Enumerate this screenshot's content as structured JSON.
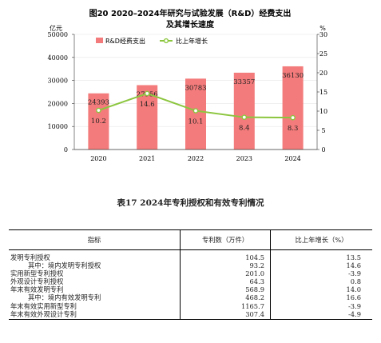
{
  "chart_data": {
    "type": "bar",
    "title_line1": "图20   2020–2024年研究与试验发展（R&D）经费支出",
    "title_line2": "及其增长速度",
    "left_unit": "亿元",
    "right_unit": "%",
    "categories": [
      "2020",
      "2021",
      "2022",
      "2023",
      "2024"
    ],
    "y_ticks": [
      "0",
      "10000",
      "20000",
      "30000",
      "40000",
      "50000"
    ],
    "y2_ticks": [
      "0",
      "5",
      "10",
      "15",
      "20",
      "25",
      "30"
    ],
    "ylim": [
      0,
      50000
    ],
    "y2lim": [
      0,
      30
    ],
    "series": [
      {
        "name": "R&D经费支出",
        "values": [
          24393,
          27956,
          30783,
          33357,
          36130
        ],
        "labels": [
          "24393",
          "27956",
          "30783",
          "33357",
          "36130"
        ],
        "color": "#f47b7b"
      },
      {
        "name": "比上年增长",
        "values": [
          10.2,
          14.6,
          10.1,
          8.4,
          8.3
        ],
        "labels": [
          "10.2",
          "14.6",
          "10.1",
          "8.4",
          "8.3"
        ],
        "color": "#8cc63f"
      }
    ],
    "legend_position": "top-left"
  },
  "table": {
    "title": "表17    2024年专利授权和有效专利情况",
    "headers": [
      "指标",
      "专利数（万件）",
      "比上年增长（%）"
    ],
    "rows": [
      {
        "label": "发明专利授权",
        "value": "104.5",
        "growth": "13.5",
        "indent": false
      },
      {
        "label": "其中：境内发明专利授权",
        "value": "93.2",
        "growth": "14.6",
        "indent": true
      },
      {
        "label": "实用新型专利授权",
        "value": "201.0",
        "growth": "-3.9",
        "indent": false
      },
      {
        "label": "外观设计专利授权",
        "value": "64.3",
        "growth": "0.8",
        "indent": false
      },
      {
        "label": "年末有效发明专利",
        "value": "568.9",
        "growth": "14.0",
        "indent": false
      },
      {
        "label": "其中：境内有效发明专利",
        "value": "468.2",
        "growth": "16.6",
        "indent": true
      },
      {
        "label": "年末有效实用新型专利",
        "value": "1165.7",
        "growth": "-3.9",
        "indent": false
      },
      {
        "label": "年末有效外观设计专利",
        "value": "307.4",
        "growth": "-4.9",
        "indent": false
      }
    ]
  }
}
